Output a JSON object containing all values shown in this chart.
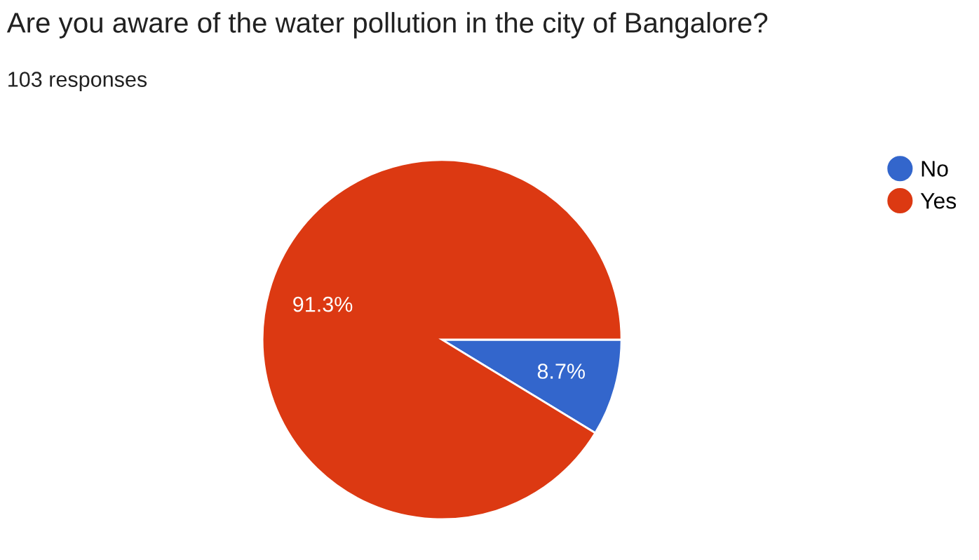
{
  "chart_data": {
    "type": "pie",
    "title": "Are you aware of the water pollution in the city of Bangalore?",
    "subtitle": "103 responses",
    "categories": [
      "No",
      "Yes"
    ],
    "values": [
      8.7,
      91.3
    ],
    "colors": [
      "#3366cc",
      "#dc3912"
    ],
    "value_labels": [
      "8.7%",
      "91.3%"
    ],
    "legend": "right"
  }
}
